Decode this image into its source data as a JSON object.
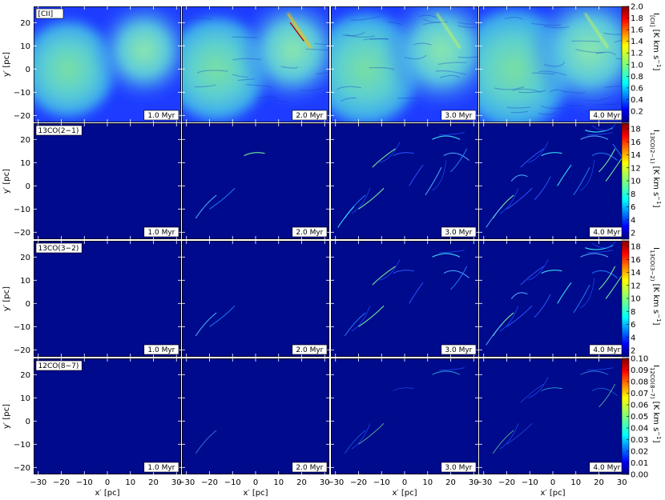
{
  "chart_data": {
    "type": "heatmap",
    "rows": [
      {
        "label": "[CII]",
        "colorbar": {
          "label": "I_[CII] [K km s^-1]",
          "label_main": "I",
          "label_sub": "[CII]",
          "label_unit": " [K km s",
          "label_sup": "−1",
          "label_close": "]",
          "ticks": [
            "2.0",
            "1.8",
            "1.6",
            "1.4",
            "1.2",
            "1.0",
            "0.8",
            "0.6",
            "0.4",
            "0.2"
          ]
        }
      },
      {
        "label": "13CO(2−1)",
        "colorbar": {
          "label": "I_13CO(2−1) [K km s^-1]",
          "label_main": "I",
          "label_sub": "13CO(2−1)",
          "label_unit": " [K km s",
          "label_sup": "−1",
          "label_close": "]",
          "ticks": [
            "18",
            "16",
            "14",
            "12",
            "10",
            "8",
            "6",
            "4",
            "2"
          ]
        }
      },
      {
        "label": "13CO(3−2)",
        "colorbar": {
          "label": "I_13CO(3−2) [K km s^-1]",
          "label_main": "I",
          "label_sub": "13CO(3−2)",
          "label_unit": " [K km s",
          "label_sup": "−1",
          "label_close": "]",
          "ticks": [
            "18",
            "16",
            "14",
            "12",
            "10",
            "8",
            "6",
            "4",
            "2"
          ]
        }
      },
      {
        "label": "12CO(8−7)",
        "colorbar": {
          "label": "I_12CO(8−7) [K km s^-1]",
          "label_main": "I",
          "label_sub": "12CO(8−7)",
          "label_unit": " [K km s",
          "label_sup": "−1",
          "label_close": "]",
          "ticks": [
            "0.10",
            "0.09",
            "0.08",
            "0.07",
            "0.06",
            "0.05",
            "0.04",
            "0.03",
            "0.02",
            "0.01",
            "0.00"
          ]
        }
      }
    ],
    "times": [
      "1.0 Myr",
      "2.0 Myr",
      "3.0 Myr",
      "4.0 Myr"
    ],
    "xlabel": "x′ [pc]",
    "ylabel": "y′ [pc]",
    "x_ticks": [
      "−30",
      "−20",
      "−10",
      "0",
      "10",
      "20",
      "30"
    ],
    "y_ticks": [
      "20",
      "10",
      "0",
      "−10",
      "−20"
    ],
    "xlim": [
      -32,
      32
    ],
    "ylim": [
      -23,
      27
    ],
    "colormap": "jet"
  }
}
